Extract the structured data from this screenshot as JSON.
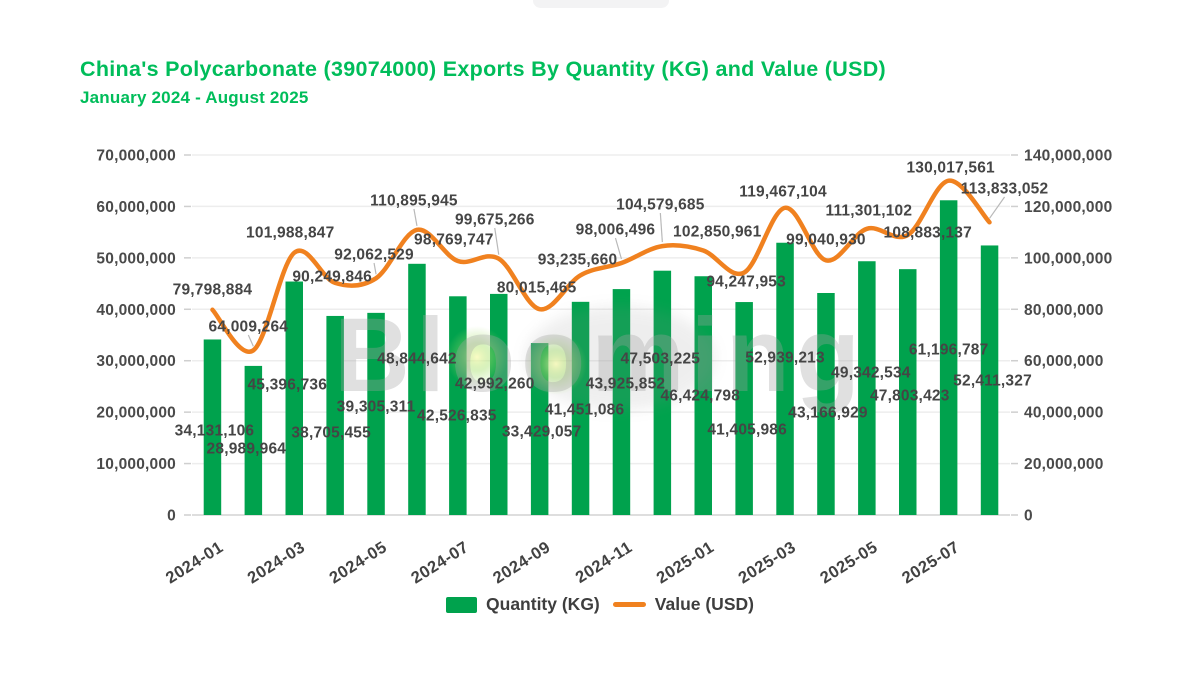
{
  "header": {
    "title": "China's Polycarbonate (39074000) Exports By Quantity (KG) and Value (USD)",
    "subtitle": "January 2024 - August 2025"
  },
  "legend": {
    "quantity": "Quantity (KG)",
    "value": "Value (USD)"
  },
  "watermark": {
    "text": "Blooming"
  },
  "colors": {
    "title_green": "#00bd5a",
    "bar_green": "#00a24d",
    "line_orange": "#f0811f",
    "label_gray": "#454545",
    "axis_gray": "#4a4a4a",
    "grid_gray": "#ededed",
    "baseline_gray": "#dedede",
    "leader_gray": "#b9b9b9"
  },
  "chart_data": {
    "type": "bar+line combo",
    "title": "China's Polycarbonate (39074000) Exports By Quantity (KG) and Value (USD)",
    "subtitle": "January 2024 - August 2025",
    "categories": [
      "2024-01",
      "2024-02",
      "2024-03",
      "2024-04",
      "2024-05",
      "2024-06",
      "2024-07",
      "2024-08",
      "2024-09",
      "2024-10",
      "2024-11",
      "2024-12",
      "2025-01",
      "2025-02",
      "2025-03",
      "2025-04",
      "2025-05",
      "2025-06",
      "2025-07",
      "2025-08"
    ],
    "x_tick_labels": [
      "2024-01",
      "2024-03",
      "2024-05",
      "2024-07",
      "2024-09",
      "2024-11",
      "2025-01",
      "2025-03",
      "2025-05",
      "2025-07"
    ],
    "series": [
      {
        "name": "Quantity (KG)",
        "type": "bar",
        "axis": "left",
        "unit": "KG",
        "values": [
          34131106,
          28989964,
          45396736,
          38705455,
          39305311,
          48844642,
          42526835,
          42992260,
          33429057,
          41451086,
          43925852,
          47503225,
          46424798,
          41405986,
          52939213,
          43166929,
          49342534,
          47803423,
          61196787,
          52411327
        ]
      },
      {
        "name": "Value (USD)",
        "type": "line",
        "axis": "right",
        "unit": "USD",
        "values": [
          79798884,
          64009264,
          101988847,
          90249846,
          92062529,
          110895945,
          98769747,
          99675266,
          80015465,
          93235660,
          98006496,
          104579685,
          102850961,
          94247953,
          119467104,
          99040930,
          111301102,
          108883137,
          130017561,
          113833052
        ]
      }
    ],
    "left_axis": {
      "max": 70000000,
      "ticks": [
        "0",
        "10,000,000",
        "20,000,000",
        "30,000,000",
        "40,000,000",
        "50,000,000",
        "60,000,000",
        "70,000,000"
      ]
    },
    "right_axis": {
      "max": 140000000,
      "ticks": [
        "0",
        "20,000,000",
        "40,000,000",
        "60,000,000",
        "80,000,000",
        "100,000,000",
        "120,000,000",
        "140,000,000"
      ]
    },
    "grid": "horizontal gridlines only",
    "legend_position": "bottom-center",
    "data_labels": "shown for every point, comma-formatted"
  }
}
